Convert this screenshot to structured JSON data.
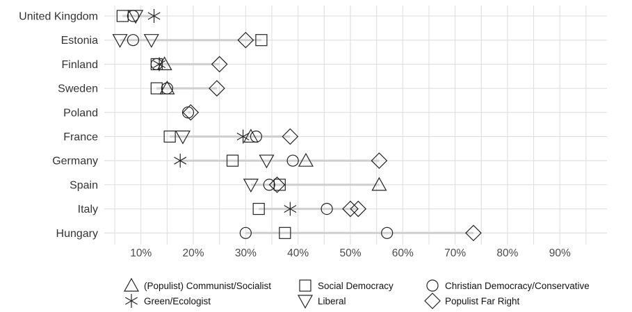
{
  "chart_data": {
    "type": "scatter",
    "x_range": [
      3,
      99
    ],
    "x_ticks": [
      10,
      20,
      30,
      40,
      50,
      60,
      70,
      80,
      90
    ],
    "x_tick_labels": [
      "10%",
      "20%",
      "30%",
      "40%",
      "50%",
      "60%",
      "70%",
      "80%",
      "90%"
    ],
    "grid": true,
    "legend_position": "bottom",
    "categories": [
      "United Kingdom",
      "Estonia",
      "Finland",
      "Sweden",
      "Poland",
      "France",
      "Germany",
      "Spain",
      "Italy",
      "Hungary"
    ],
    "series": [
      {
        "name": "(Populist) Communist/Socialist",
        "marker": "triangle-up",
        "points": [
          {
            "country": "Finland",
            "value": 14.5
          },
          {
            "country": "Sweden",
            "value": 15
          },
          {
            "country": "France",
            "value": 31
          },
          {
            "country": "Germany",
            "value": 41.5
          },
          {
            "country": "Spain",
            "value": 55.5
          }
        ]
      },
      {
        "name": "Social Democracy",
        "marker": "square",
        "points": [
          {
            "country": "United Kingdom",
            "value": 6.5
          },
          {
            "country": "Estonia",
            "value": 33
          },
          {
            "country": "Finland",
            "value": 13
          },
          {
            "country": "Sweden",
            "value": 13
          },
          {
            "country": "France",
            "value": 15.5
          },
          {
            "country": "Germany",
            "value": 27.5
          },
          {
            "country": "Spain",
            "value": 36.5
          },
          {
            "country": "Italy",
            "value": 32.5
          },
          {
            "country": "Hungary",
            "value": 37.5
          }
        ]
      },
      {
        "name": "Christian Democracy/Conservative",
        "marker": "circle",
        "points": [
          {
            "country": "United Kingdom",
            "value": 8.5
          },
          {
            "country": "Estonia",
            "value": 8.5
          },
          {
            "country": "Finland",
            "value": 13
          },
          {
            "country": "Sweden",
            "value": 15
          },
          {
            "country": "Poland",
            "value": 19
          },
          {
            "country": "France",
            "value": 32
          },
          {
            "country": "Germany",
            "value": 39
          },
          {
            "country": "Spain",
            "value": 34.5
          },
          {
            "country": "Italy",
            "value": 45.5
          },
          {
            "country": "Hungary",
            "value": 30
          },
          {
            "country": "Hungary",
            "value": 57
          }
        ]
      },
      {
        "name": "Green/Ecologist",
        "marker": "asterisk",
        "points": [
          {
            "country": "United Kingdom",
            "value": 12.5
          },
          {
            "country": "Finland",
            "value": 13.5
          },
          {
            "country": "France",
            "value": 29.5
          },
          {
            "country": "Germany",
            "value": 17.5
          },
          {
            "country": "Italy",
            "value": 38.5
          }
        ]
      },
      {
        "name": "Liberal",
        "marker": "triangle-down",
        "points": [
          {
            "country": "United Kingdom",
            "value": 9
          },
          {
            "country": "Estonia",
            "value": 6
          },
          {
            "country": "Estonia",
            "value": 12
          },
          {
            "country": "France",
            "value": 18
          },
          {
            "country": "Germany",
            "value": 34
          },
          {
            "country": "Spain",
            "value": 31
          }
        ]
      },
      {
        "name": "Populist Far Right",
        "marker": "diamond",
        "points": [
          {
            "country": "Estonia",
            "value": 30
          },
          {
            "country": "Finland",
            "value": 25
          },
          {
            "country": "Sweden",
            "value": 24.5
          },
          {
            "country": "Poland",
            "value": 19.5
          },
          {
            "country": "France",
            "value": 38.5
          },
          {
            "country": "Germany",
            "value": 55.5
          },
          {
            "country": "Spain",
            "value": 36
          },
          {
            "country": "Italy",
            "value": 50
          },
          {
            "country": "Italy",
            "value": 51.5
          },
          {
            "country": "Hungary",
            "value": 73.5
          }
        ]
      }
    ],
    "ranges": [
      {
        "country": "United Kingdom",
        "min": 6.5,
        "max": 12.5
      },
      {
        "country": "Estonia",
        "min": 6,
        "max": 33
      },
      {
        "country": "Finland",
        "min": 13,
        "max": 25
      },
      {
        "country": "Sweden",
        "min": 13,
        "max": 24.5
      },
      {
        "country": "Poland",
        "min": 19,
        "max": 19.5
      },
      {
        "country": "France",
        "min": 15.5,
        "max": 38.5
      },
      {
        "country": "Germany",
        "min": 17.5,
        "max": 55.5
      },
      {
        "country": "Spain",
        "min": 31,
        "max": 55.5
      },
      {
        "country": "Italy",
        "min": 32.5,
        "max": 51.5
      },
      {
        "country": "Hungary",
        "min": 30,
        "max": 73.5
      }
    ],
    "colors": {
      "grid": "#dcdcdc",
      "range_line": "#cfcfcf",
      "marker": "#222222"
    }
  }
}
